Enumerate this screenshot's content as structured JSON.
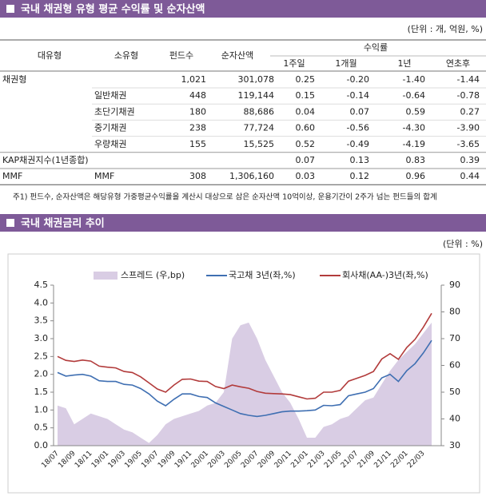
{
  "sections": [
    {
      "title": "국내 채권형 유형 평균 수익률 및 순자산액",
      "unit": "(단위 : 개, 억원, %)"
    },
    {
      "title": "국내 채권금리 추이",
      "unit": "(단위 : %)"
    }
  ],
  "table": {
    "header": {
      "group": "수익률",
      "columns": [
        "대유형",
        "소유형",
        "펀드수",
        "순자산액",
        "1주일",
        "1개월",
        "1년",
        "연초후"
      ]
    },
    "rows": [
      [
        "채권형",
        null,
        "1,021",
        "301,078",
        "0.25",
        "-0.20",
        "-1.40",
        "-1.44"
      ],
      [
        null,
        "일반채권",
        "448",
        "119,144",
        "0.15",
        "-0.14",
        "-0.64",
        "-0.78"
      ],
      [
        null,
        "초단기채권",
        "180",
        "88,686",
        "0.04",
        "0.07",
        "0.59",
        "0.27"
      ],
      [
        null,
        "중기채권",
        "238",
        "77,724",
        "0.60",
        "-0.56",
        "-4.30",
        "-3.90"
      ],
      [
        null,
        "우량채권",
        "155",
        "15,525",
        "0.52",
        "-0.49",
        "-4.19",
        "-3.65"
      ],
      [
        "KAP채권지수(1년종합)",
        null,
        null,
        null,
        "0.07",
        "0.13",
        "0.83",
        "0.39"
      ],
      [
        "MMF",
        "MMF",
        "308",
        "1,306,160",
        "0.03",
        "0.12",
        "0.96",
        "0.44"
      ]
    ],
    "note": "주1) 펀드수, 순자산액은 해당유형 가중평균수익률을 계산시 대상으로 삼은 순자산액 10억이상, 운용기간이 2주가 넘는 펀드들의 합계"
  },
  "chart_data": {
    "type": "line",
    "legend": "top",
    "categories": [
      "18/07",
      null,
      "18/09",
      null,
      "18/11",
      null,
      "19/01",
      null,
      "19/03",
      null,
      "19/05",
      null,
      "19/07",
      null,
      "19/09",
      null,
      "19/11",
      null,
      "20/01",
      null,
      "20/03",
      null,
      "20/05",
      null,
      "20/07",
      null,
      "20/09",
      null,
      "20/11",
      null,
      "21/01",
      null,
      "21/03",
      null,
      "21/05",
      null,
      "21/07",
      null,
      "21/09",
      null,
      "21/11",
      null,
      "22/01",
      null,
      "22/03",
      null
    ],
    "series": [
      {
        "name": "스프레드 (우,bp)",
        "color": "#d9cde4",
        "axis": "y2",
        "kind": "area",
        "values": [
          45,
          44,
          38,
          40,
          42,
          41,
          40,
          38,
          36,
          35,
          33,
          31,
          34,
          38,
          40,
          41,
          42,
          43,
          45,
          46,
          50,
          70,
          75,
          76,
          70,
          62,
          56,
          50,
          46,
          40,
          33,
          33,
          37,
          38,
          40,
          41,
          44,
          47,
          48,
          53,
          58,
          62,
          65,
          68,
          72,
          76
        ]
      },
      {
        "name": "국고채 3년(좌,%)",
        "color": "#3f6fb2",
        "kind": "line",
        "values": [
          2.05,
          1.95,
          1.98,
          2.0,
          1.95,
          1.82,
          1.8,
          1.8,
          1.72,
          1.7,
          1.6,
          1.45,
          1.25,
          1.12,
          1.3,
          1.45,
          1.45,
          1.38,
          1.35,
          1.2,
          1.1,
          1.0,
          0.9,
          0.85,
          0.82,
          0.85,
          0.9,
          0.95,
          0.97,
          0.97,
          0.98,
          1.0,
          1.13,
          1.12,
          1.15,
          1.4,
          1.45,
          1.5,
          1.6,
          1.9,
          2.0,
          1.8,
          2.1,
          2.3,
          2.6,
          2.95
        ]
      },
      {
        "name": "회사채(AA-)3년(좌,%)",
        "color": "#b23b3b",
        "kind": "line",
        "values": [
          2.5,
          2.39,
          2.36,
          2.4,
          2.37,
          2.23,
          2.2,
          2.18,
          2.08,
          2.05,
          1.93,
          1.76,
          1.59,
          1.5,
          1.7,
          1.86,
          1.87,
          1.81,
          1.8,
          1.66,
          1.6,
          1.7,
          1.65,
          1.61,
          1.52,
          1.47,
          1.46,
          1.45,
          1.43,
          1.37,
          1.31,
          1.33,
          1.5,
          1.5,
          1.55,
          1.81,
          1.89,
          1.97,
          2.08,
          2.43,
          2.58,
          2.42,
          2.75,
          2.98,
          3.32,
          3.71
        ]
      }
    ],
    "ylim": [
      0,
      4.5
    ],
    "yticks": [
      {
        "value": 0,
        "label": "0.0"
      },
      0.5,
      {
        "value": 1,
        "label": "1.0"
      },
      1.5,
      {
        "value": 2,
        "label": "2.0"
      },
      2.5,
      {
        "value": 3,
        "label": "3.0"
      },
      3.5,
      {
        "value": 4,
        "label": "4.0"
      },
      4.5
    ],
    "y2lim": [
      30,
      90
    ],
    "y2ticks": [
      30,
      40,
      50,
      60,
      70,
      80,
      90
    ]
  }
}
